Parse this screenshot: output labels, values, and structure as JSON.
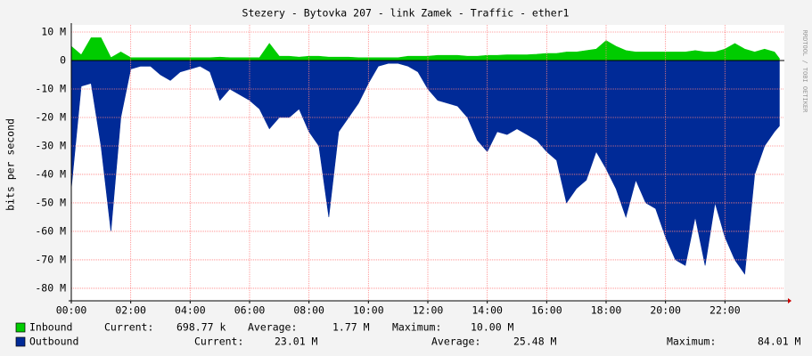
{
  "chart_data": {
    "type": "area",
    "title": "Stezery - Bytovka 207 - link Zamek - Traffic - ether1",
    "y_label": "bits per second",
    "side_text": "RRDTOOL / TOBI OETIKER",
    "xlim": [
      0,
      1440
    ],
    "xticks": [
      {
        "value": 0,
        "label": "00:00"
      },
      {
        "value": 120,
        "label": "02:00"
      },
      {
        "value": 240,
        "label": "04:00"
      },
      {
        "value": 360,
        "label": "06:00"
      },
      {
        "value": 480,
        "label": "08:00"
      },
      {
        "value": 600,
        "label": "10:00"
      },
      {
        "value": 720,
        "label": "12:00"
      },
      {
        "value": 840,
        "label": "14:00"
      },
      {
        "value": 960,
        "label": "16:00"
      },
      {
        "value": 1080,
        "label": "18:00"
      },
      {
        "value": 1200,
        "label": "20:00"
      },
      {
        "value": 1320,
        "label": "22:00"
      }
    ],
    "ylim": [
      -84.4,
      12.5
    ],
    "yticks": [
      {
        "value": 10,
        "label": "10 M"
      },
      0,
      {
        "value": -10,
        "label": "-10 M"
      },
      {
        "value": -20,
        "label": "-20 M"
      },
      {
        "value": -30,
        "label": "-30 M"
      },
      {
        "value": -40,
        "label": "-40 M"
      },
      {
        "value": -50,
        "label": "-50 M"
      },
      {
        "value": -60,
        "label": "-60 M"
      },
      {
        "value": -70,
        "label": "-70 M"
      },
      {
        "value": -80,
        "label": "-80 M"
      }
    ],
    "grid": true,
    "x": [
      0,
      20,
      40,
      60,
      80,
      100,
      120,
      140,
      160,
      180,
      200,
      220,
      240,
      260,
      280,
      300,
      320,
      340,
      360,
      380,
      400,
      420,
      440,
      460,
      480,
      500,
      520,
      540,
      560,
      580,
      600,
      620,
      640,
      660,
      680,
      700,
      720,
      740,
      760,
      780,
      800,
      820,
      840,
      860,
      880,
      900,
      920,
      940,
      960,
      980,
      1000,
      1020,
      1040,
      1060,
      1080,
      1100,
      1120,
      1140,
      1160,
      1180,
      1200,
      1220,
      1240,
      1260,
      1280,
      1300,
      1320,
      1340,
      1360,
      1380,
      1400,
      1420,
      1430
    ],
    "series": [
      {
        "name": "Inbound",
        "color": "#00cc00",
        "values": [
          5,
          2,
          8,
          8,
          1,
          3,
          1,
          1,
          1,
          1,
          1,
          1,
          1,
          1,
          1,
          1.2,
          1,
          1,
          1,
          1,
          6,
          1.5,
          1.5,
          1.2,
          1.5,
          1.5,
          1.2,
          1.2,
          1.2,
          1,
          1,
          1,
          1,
          1,
          1.5,
          1.5,
          1.5,
          1.8,
          1.8,
          1.8,
          1.5,
          1.5,
          1.8,
          1.8,
          2,
          2,
          2,
          2.2,
          2.5,
          2.5,
          3,
          3,
          3.5,
          4,
          7,
          5,
          3.5,
          3,
          3,
          3,
          3,
          3,
          3,
          3.5,
          3,
          3,
          4,
          6,
          4,
          3,
          4,
          3,
          0.7
        ],
        "stats": [
          {
            "label": "Current:",
            "value": "698.77 k"
          },
          {
            "label": "Average:",
            "value": "1.77 M"
          },
          {
            "label": "Maximum:",
            "value": "10.00 M"
          }
        ]
      },
      {
        "name": "Outbound",
        "color": "#002a97",
        "values": [
          -45,
          -9,
          -8,
          -30,
          -60,
          -20,
          -3,
          -2,
          -2,
          -5,
          -7,
          -4,
          -3,
          -2,
          -4,
          -14,
          -10,
          -12,
          -14,
          -17,
          -24,
          -20,
          -20,
          -17,
          -25,
          -30,
          -55,
          -25,
          -20,
          -15,
          -8,
          -2,
          -1,
          -1,
          -2,
          -4,
          -10,
          -14,
          -15,
          -16,
          -20,
          -28,
          -32,
          -25,
          -26,
          -24,
          -26,
          -28,
          -32,
          -35,
          -50,
          -45,
          -42,
          -32,
          -38,
          -45,
          -55,
          -42,
          -50,
          -52,
          -62,
          -70,
          -72,
          -55,
          -72,
          -50,
          -62,
          -70,
          -75,
          -40,
          -30,
          -25,
          -23
        ],
        "stats": [
          {
            "label": "Current:",
            "value": "23.01 M"
          },
          {
            "label": "Average:",
            "value": "25.48 M"
          },
          {
            "label": "Maximum:",
            "value": "84.01 M"
          }
        ]
      }
    ]
  }
}
